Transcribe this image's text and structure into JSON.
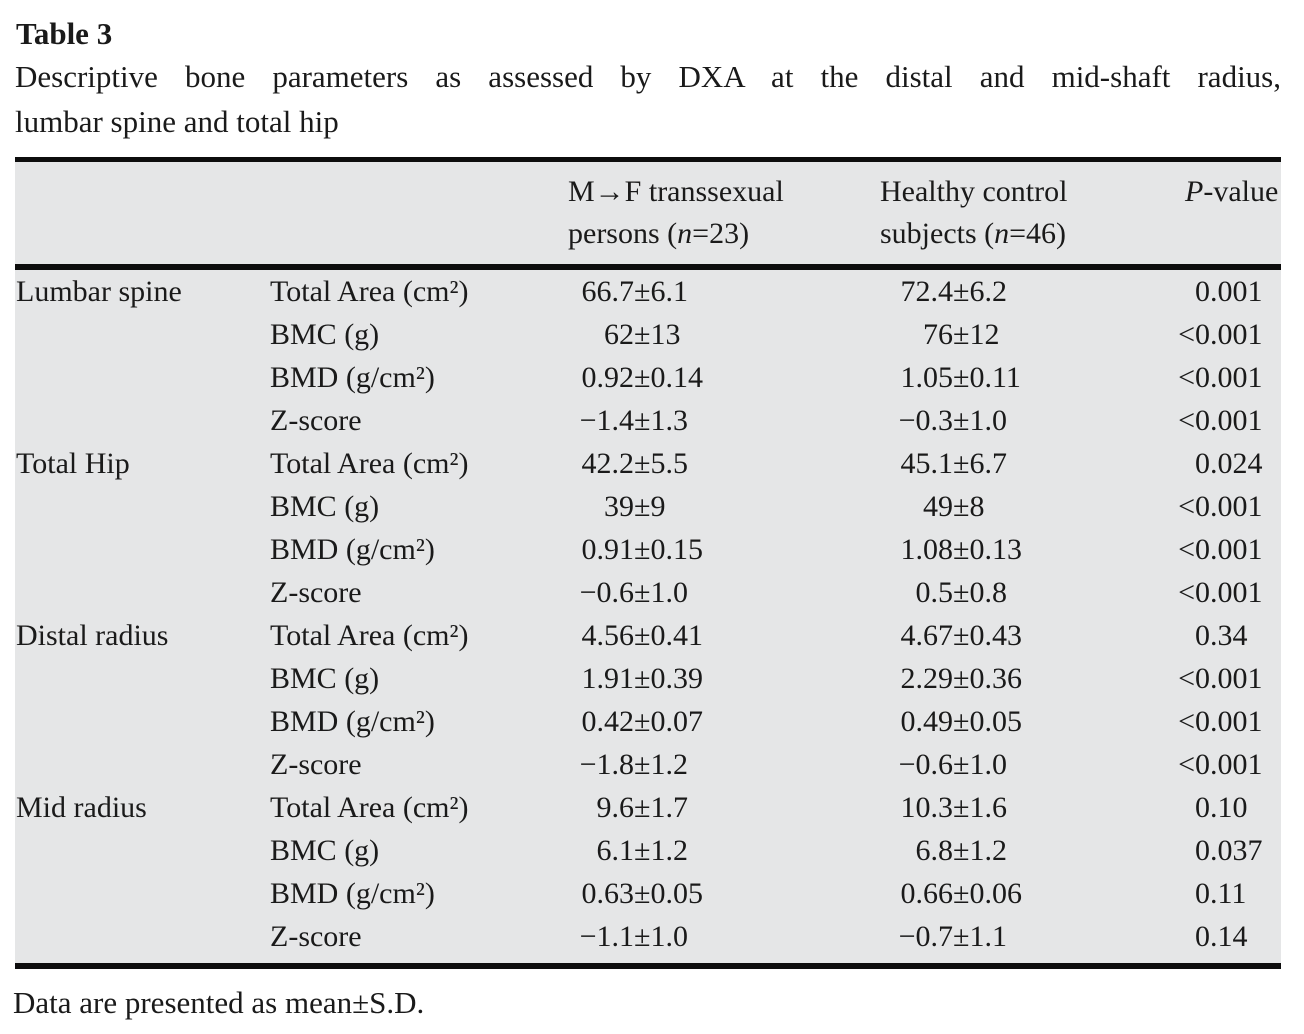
{
  "colors": {
    "page_bg": "#ffffff",
    "table_bg": "#e5e6e7",
    "text": "#1a1a1a",
    "rule": "#0d0d0d"
  },
  "title": "Table 3",
  "caption": {
    "line1": "Descriptive bone parameters as assessed by DXA at the distal and mid-shaft radius,",
    "line2": "lumbar spine and total hip"
  },
  "symbols": {
    "plus_minus": "±"
  },
  "header": {
    "mtf": {
      "line1": "M→F transsexual",
      "line2_pre": "persons (",
      "n_italic": "n",
      "line2_post": "=23)"
    },
    "control": {
      "line1": "Healthy control",
      "line2_pre": "subjects (",
      "n_italic": "n",
      "line2_post": "=46)"
    },
    "pvalue": {
      "p_italic": "P",
      "rest": "-value"
    }
  },
  "footnote": "Data are presented as mean±S.D.",
  "groups": [
    {
      "name": "Lumbar spine",
      "rows": [
        {
          "parameter": "Total Area (cm²)",
          "mtf_mean": "66.7",
          "mtf_sd": "6.1",
          "ctrl_mean": "72.4",
          "ctrl_sd": "6.2",
          "p_prefix": "",
          "p_value": "0.001"
        },
        {
          "parameter": "BMC (g)",
          "mtf_mean": "62",
          "mtf_sd": "13",
          "ctrl_mean": "76",
          "ctrl_sd": "12",
          "p_prefix": "<",
          "p_value": "0.001"
        },
        {
          "parameter": "BMD (g/cm²)",
          "mtf_mean": "0.92",
          "mtf_sd": "0.14",
          "ctrl_mean": "1.05",
          "ctrl_sd": "0.11",
          "p_prefix": "<",
          "p_value": "0.001"
        },
        {
          "parameter": "Z-score",
          "mtf_mean": "−1.4",
          "mtf_sd": "1.3",
          "ctrl_mean": "−0.3",
          "ctrl_sd": "1.0",
          "p_prefix": "<",
          "p_value": "0.001"
        }
      ]
    },
    {
      "name": "Total Hip",
      "rows": [
        {
          "parameter": "Total Area (cm²)",
          "mtf_mean": "42.2",
          "mtf_sd": "5.5",
          "ctrl_mean": "45.1",
          "ctrl_sd": "6.7",
          "p_prefix": "",
          "p_value": "0.024"
        },
        {
          "parameter": "BMC (g)",
          "mtf_mean": "39",
          "mtf_sd": "9",
          "ctrl_mean": "49",
          "ctrl_sd": "8",
          "p_prefix": "<",
          "p_value": "0.001"
        },
        {
          "parameter": "BMD (g/cm²)",
          "mtf_mean": "0.91",
          "mtf_sd": "0.15",
          "ctrl_mean": "1.08",
          "ctrl_sd": "0.13",
          "p_prefix": "<",
          "p_value": "0.001"
        },
        {
          "parameter": "Z-score",
          "mtf_mean": "−0.6",
          "mtf_sd": "1.0",
          "ctrl_mean": "0.5",
          "ctrl_sd": "0.8",
          "p_prefix": "<",
          "p_value": "0.001"
        }
      ]
    },
    {
      "name": "Distal radius",
      "rows": [
        {
          "parameter": "Total Area (cm²)",
          "mtf_mean": "4.56",
          "mtf_sd": "0.41",
          "ctrl_mean": "4.67",
          "ctrl_sd": "0.43",
          "p_prefix": "",
          "p_value": "0.34"
        },
        {
          "parameter": "BMC (g)",
          "mtf_mean": "1.91",
          "mtf_sd": "0.39",
          "ctrl_mean": "2.29",
          "ctrl_sd": "0.36",
          "p_prefix": "<",
          "p_value": "0.001"
        },
        {
          "parameter": "BMD (g/cm²)",
          "mtf_mean": "0.42",
          "mtf_sd": "0.07",
          "ctrl_mean": "0.49",
          "ctrl_sd": "0.05",
          "p_prefix": "<",
          "p_value": "0.001"
        },
        {
          "parameter": "Z-score",
          "mtf_mean": "−1.8",
          "mtf_sd": "1.2",
          "ctrl_mean": "−0.6",
          "ctrl_sd": "1.0",
          "p_prefix": "<",
          "p_value": "0.001"
        }
      ]
    },
    {
      "name": "Mid radius",
      "rows": [
        {
          "parameter": "Total Area (cm²)",
          "mtf_mean": "9.6",
          "mtf_sd": "1.7",
          "ctrl_mean": "10.3",
          "ctrl_sd": "1.6",
          "p_prefix": "",
          "p_value": "0.10"
        },
        {
          "parameter": "BMC (g)",
          "mtf_mean": "6.1",
          "mtf_sd": "1.2",
          "ctrl_mean": "6.8",
          "ctrl_sd": "1.2",
          "p_prefix": "",
          "p_value": "0.037"
        },
        {
          "parameter": "BMD (g/cm²)",
          "mtf_mean": "0.63",
          "mtf_sd": "0.05",
          "ctrl_mean": "0.66",
          "ctrl_sd": "0.06",
          "p_prefix": "",
          "p_value": "0.11"
        },
        {
          "parameter": "Z-score",
          "mtf_mean": "−1.1",
          "mtf_sd": "1.0",
          "ctrl_mean": "−0.7",
          "ctrl_sd": "1.1",
          "p_prefix": "",
          "p_value": "0.14"
        }
      ]
    }
  ]
}
